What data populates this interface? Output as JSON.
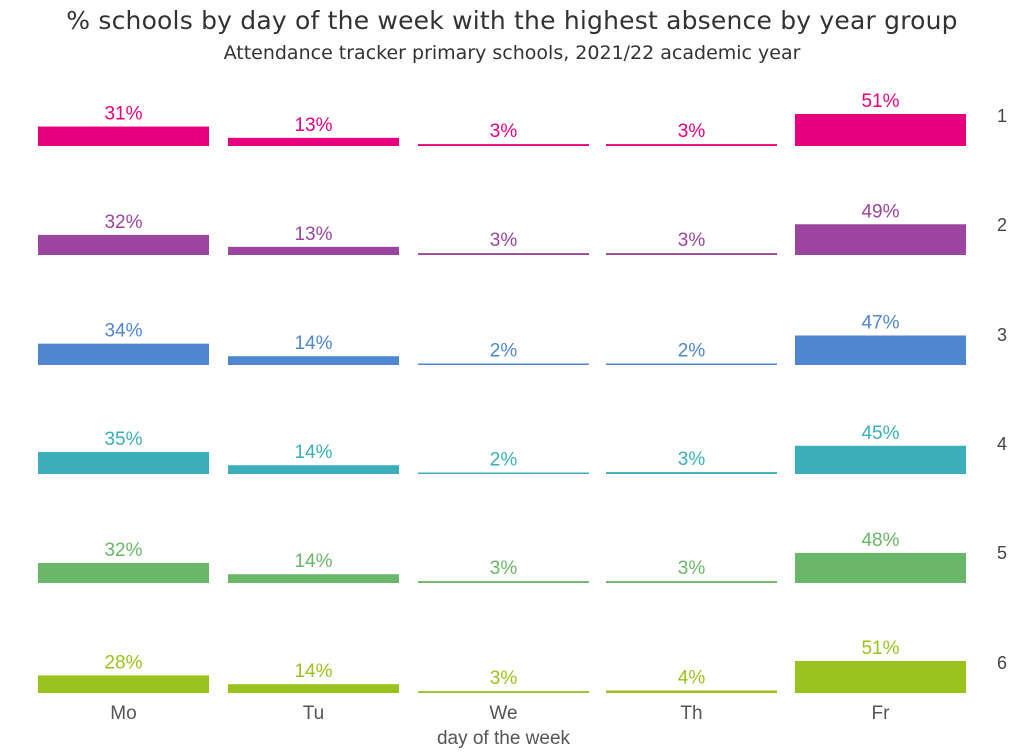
{
  "chart_data": {
    "type": "bar",
    "title": "% schools by day of the week with the highest absence by year group",
    "subtitle": "Attendance tracker primary schools, 2021/22 academic year",
    "xlabel": "day of the week",
    "categories": [
      "Mo",
      "Tu",
      "We",
      "Th",
      "Fr"
    ],
    "ylim": [
      0,
      51
    ],
    "series": [
      {
        "name": "1",
        "color": "#e6007e",
        "values": [
          31,
          13,
          3,
          3,
          51
        ],
        "labels": [
          "31%",
          "13%",
          "3%",
          "3%",
          "51%"
        ]
      },
      {
        "name": "2",
        "color": "#9b45a0",
        "values": [
          32,
          13,
          3,
          3,
          49
        ],
        "labels": [
          "32%",
          "13%",
          "3%",
          "3%",
          "49%"
        ]
      },
      {
        "name": "3",
        "color": "#4f86d0",
        "values": [
          34,
          14,
          2,
          2,
          47
        ],
        "labels": [
          "34%",
          "14%",
          "2%",
          "2%",
          "47%"
        ]
      },
      {
        "name": "4",
        "color": "#3aafb9",
        "values": [
          35,
          14,
          2,
          3,
          45
        ],
        "labels": [
          "35%",
          "14%",
          "2%",
          "3%",
          "45%"
        ]
      },
      {
        "name": "5",
        "color": "#6ab76a",
        "values": [
          32,
          14,
          3,
          3,
          48
        ],
        "labels": [
          "32%",
          "14%",
          "3%",
          "3%",
          "48%"
        ]
      },
      {
        "name": "6",
        "color": "#99c31c",
        "values": [
          28,
          14,
          3,
          4,
          51
        ],
        "labels": [
          "28%",
          "14%",
          "3%",
          "4%",
          "51%"
        ]
      }
    ]
  }
}
